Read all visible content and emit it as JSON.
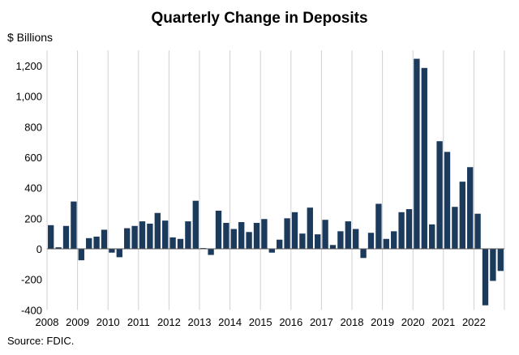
{
  "chart_data": {
    "type": "bar",
    "title": "Quarterly Change in Deposits",
    "unit_label": "$ Billions",
    "source": "Source: FDIC.",
    "ylim": [
      -400,
      1300
    ],
    "yticks": [
      -400,
      -200,
      0,
      200,
      400,
      600,
      800,
      1000,
      1200
    ],
    "ytick_labels": [
      "-400",
      "-200",
      "0",
      "200",
      "400",
      "600",
      "800",
      "1,000",
      "1,200"
    ],
    "year_labels": [
      "2008",
      "2009",
      "2010",
      "2011",
      "2012",
      "2013",
      "2014",
      "2015",
      "2016",
      "2017",
      "2018",
      "2019",
      "2020",
      "2021",
      "2022"
    ],
    "grid": true,
    "bar_color": "#1b3a5c",
    "categories": [
      "2008 Q1",
      "2008 Q2",
      "2008 Q3",
      "2008 Q4",
      "2009 Q1",
      "2009 Q2",
      "2009 Q3",
      "2009 Q4",
      "2010 Q1",
      "2010 Q2",
      "2010 Q3",
      "2010 Q4",
      "2011 Q1",
      "2011 Q2",
      "2011 Q3",
      "2011 Q4",
      "2012 Q1",
      "2012 Q2",
      "2012 Q3",
      "2012 Q4",
      "2013 Q1",
      "2013 Q2",
      "2013 Q3",
      "2013 Q4",
      "2014 Q1",
      "2014 Q2",
      "2014 Q3",
      "2014 Q4",
      "2015 Q1",
      "2015 Q2",
      "2015 Q3",
      "2015 Q4",
      "2016 Q1",
      "2016 Q2",
      "2016 Q3",
      "2016 Q4",
      "2017 Q1",
      "2017 Q2",
      "2017 Q3",
      "2017 Q4",
      "2018 Q1",
      "2018 Q2",
      "2018 Q3",
      "2018 Q4",
      "2019 Q1",
      "2019 Q2",
      "2019 Q3",
      "2019 Q4",
      "2020 Q1",
      "2020 Q2",
      "2020 Q3",
      "2020 Q4",
      "2021 Q1",
      "2021 Q2",
      "2021 Q3",
      "2021 Q4",
      "2022 Q1",
      "2022 Q2",
      "2022 Q3",
      "2022 Q4"
    ],
    "values": [
      155,
      10,
      150,
      310,
      -75,
      70,
      80,
      125,
      -25,
      -55,
      135,
      150,
      180,
      165,
      235,
      185,
      75,
      65,
      180,
      315,
      5,
      -40,
      250,
      170,
      130,
      175,
      110,
      170,
      195,
      -25,
      60,
      200,
      240,
      100,
      270,
      95,
      190,
      25,
      115,
      180,
      130,
      -60,
      105,
      295,
      65,
      115,
      240,
      260,
      1245,
      1185,
      160,
      705,
      635,
      275,
      440,
      535,
      230,
      -370,
      -210,
      -145
    ]
  }
}
